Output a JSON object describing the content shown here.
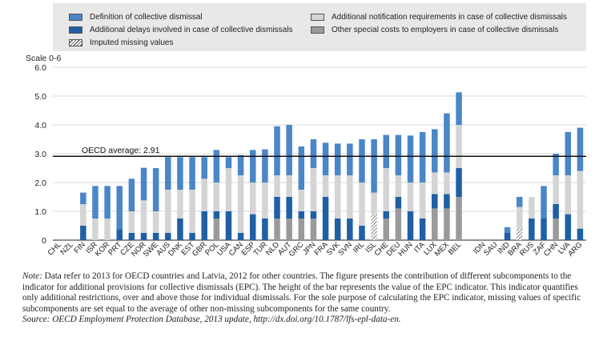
{
  "chart_data": {
    "type": "stacked-bar",
    "ylabel": "Scale 0-6",
    "ylim": [
      0,
      6
    ],
    "yticks": [
      "0",
      "1.0",
      "2.0",
      "3.0",
      "4.0",
      "5.0",
      "6.0"
    ],
    "reference_line": {
      "label": "OECD average: 2.91",
      "value": 2.91
    },
    "legend": [
      {
        "key": "definition",
        "label": "Definition of collective dismissal",
        "color": "#4a86c8"
      },
      {
        "key": "delays",
        "label": "Additional delays involved in case of collective dismissals",
        "color": "#1f5fa5"
      },
      {
        "key": "imputed",
        "label": "Imputed missing values",
        "color": "hatch"
      },
      {
        "key": "notification",
        "label": "Additional notification requirements in case of collective dismissals",
        "color": "#d4d4d4"
      },
      {
        "key": "other",
        "label": "Other special costs to employers in case of collective dismissals",
        "color": "#9a9a9a"
      }
    ],
    "stack_order": [
      "other",
      "delays",
      "notification",
      "definition"
    ],
    "categories": [
      "CHL",
      "NZL",
      "FIN",
      "ISR",
      "KOR",
      "PRT",
      "CZE",
      "NOR",
      "SWE",
      "AUS",
      "DNK",
      "EST",
      "GBR",
      "POL",
      "USA",
      "CAN",
      "ESP",
      "TUR",
      "NLD",
      "AUT",
      "GRC",
      "JPN",
      "FRA",
      "SVK",
      "SVN",
      "IRL",
      "ISL",
      "CHE",
      "DEU",
      "HUN",
      "ITA",
      "LUX",
      "MEX",
      "BEL",
      "",
      "IDN",
      "SAU",
      "IND",
      "BRA",
      "RUS",
      "ZAF",
      "CHN",
      "LVA",
      "ARG"
    ],
    "series": [
      {
        "name": "other",
        "values": [
          0,
          0,
          0,
          0,
          0,
          0,
          0,
          0,
          0,
          0,
          0,
          0,
          0,
          0.75,
          0,
          0,
          0,
          0,
          0.75,
          0.75,
          0.75,
          0.75,
          0,
          0,
          0,
          0,
          0,
          0.75,
          1.1,
          0,
          0,
          1.1,
          1.1,
          1.5,
          null,
          0,
          0,
          0,
          0,
          0,
          0,
          0.75,
          0,
          0
        ]
      },
      {
        "name": "imputed",
        "values": [
          0,
          0,
          0,
          0,
          0,
          0,
          0,
          0,
          0,
          0,
          0,
          0,
          0,
          0,
          0,
          0,
          0,
          0,
          0,
          0,
          0,
          0,
          0,
          0,
          0,
          0,
          0.9,
          0,
          0,
          0,
          0,
          0,
          0,
          0,
          null,
          0,
          0,
          0,
          0.4,
          0,
          0,
          0,
          0,
          0
        ]
      },
      {
        "name": "delays",
        "values": [
          0,
          0,
          0.5,
          0,
          0,
          0.38,
          0.25,
          0.25,
          0.25,
          0.25,
          0.75,
          0.25,
          1.0,
          0.25,
          1.0,
          0.25,
          0.9,
          0.75,
          0.75,
          0.75,
          0.25,
          0.25,
          1.5,
          0.75,
          0.75,
          0.5,
          0,
          0.25,
          0.4,
          1.0,
          0.75,
          0.5,
          0.5,
          1.0,
          null,
          0,
          0,
          0.25,
          0,
          0.75,
          0.75,
          0.5,
          0.9,
          0.4
        ]
      },
      {
        "name": "notification",
        "values": [
          0,
          0,
          0.75,
          0.75,
          0.75,
          0,
          0.75,
          1.13,
          0.75,
          1.5,
          1.0,
          1.5,
          1.13,
          1.0,
          1.5,
          2.0,
          1.1,
          1.25,
          0.75,
          0.75,
          0.75,
          1.5,
          0.75,
          1.5,
          1.5,
          1.5,
          0.75,
          1.5,
          0.75,
          1.0,
          1.25,
          0.75,
          0.75,
          1.5,
          null,
          0,
          0,
          0,
          0.75,
          0.75,
          0,
          1.0,
          1.35,
          2.0
        ]
      },
      {
        "name": "definition",
        "values": [
          0,
          0,
          0.4,
          1.13,
          1.13,
          1.5,
          1.13,
          1.13,
          1.5,
          1.13,
          1.13,
          1.13,
          0.75,
          1.13,
          0.38,
          0.7,
          1.13,
          1.15,
          1.7,
          1.75,
          1.5,
          1.0,
          1.13,
          1.1,
          1.1,
          1.5,
          1.85,
          1.15,
          1.4,
          1.63,
          1.75,
          1.5,
          2.05,
          1.13,
          null,
          0,
          0,
          0.2,
          0.35,
          0,
          1.13,
          0.75,
          1.5,
          1.5
        ]
      }
    ]
  },
  "notes": {
    "note_label": "Note:",
    "note_text": "Data refer to 2013 for OECD countries and Latvia, 2012 for other countries. The figure presents the contribution of different subcomponents to the indicator for additional provisions for collective dismissals (EPC). The height of the bar represents the value of the EPC indicator. This indicator quantifies only additional restrictions, over and above those for individual dismissals. For the sole purpose of calculating the EPC indicator, missing values of specific subcomponents are set equal to the average of other non-missing subcomponents for the same country.",
    "source_label": "Source:",
    "source_text": "OECD Employment Protection Database, 2013 update, http://dx.doi.org/10.1787/lfs-epl-data-en."
  }
}
